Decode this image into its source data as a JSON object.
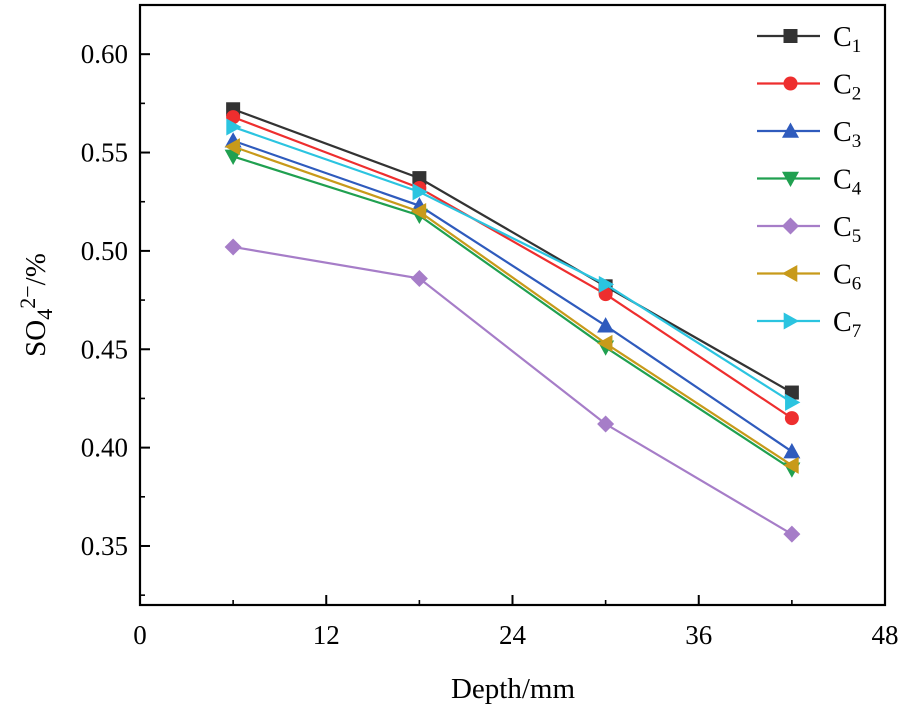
{
  "chart_data": {
    "type": "line",
    "title": "",
    "xlabel": "Depth/mm",
    "ylabel": {
      "base": "SO",
      "subscript": "4",
      "superscript": "2−",
      "suffix": "/%"
    },
    "xlim": [
      0,
      48
    ],
    "ylim": [
      0.32,
      0.625
    ],
    "xticks": [
      0,
      12,
      24,
      36,
      48
    ],
    "xtick_labels": [
      "0",
      "12",
      "24",
      "36",
      "48"
    ],
    "yticks": [
      0.35,
      0.4,
      0.45,
      0.5,
      0.55,
      0.6
    ],
    "ytick_labels": [
      "0.35",
      "0.40",
      "0.45",
      "0.50",
      "0.55",
      "0.60"
    ],
    "grid": false,
    "legend_position": "top-right",
    "x": [
      6,
      18,
      30,
      42
    ],
    "series": [
      {
        "name": "C1",
        "label": "C",
        "sub": "1",
        "color": "#333333",
        "marker": "square",
        "values": [
          0.572,
          0.537,
          0.482,
          0.428
        ]
      },
      {
        "name": "C2",
        "label": "C",
        "sub": "2",
        "color": "#ee2e2e",
        "marker": "circle",
        "values": [
          0.568,
          0.532,
          0.478,
          0.415
        ]
      },
      {
        "name": "C3",
        "label": "C",
        "sub": "3",
        "color": "#2f5bbd",
        "marker": "triangle-up",
        "values": [
          0.556,
          0.523,
          0.462,
          0.398
        ]
      },
      {
        "name": "C4",
        "label": "C",
        "sub": "4",
        "color": "#20a050",
        "marker": "triangle-down",
        "values": [
          0.548,
          0.518,
          0.451,
          0.389
        ]
      },
      {
        "name": "C5",
        "label": "C",
        "sub": "5",
        "color": "#a67dc8",
        "marker": "diamond",
        "values": [
          0.502,
          0.486,
          0.412,
          0.356
        ]
      },
      {
        "name": "C6",
        "label": "C",
        "sub": "6",
        "color": "#c89a1a",
        "marker": "triangle-left",
        "values": [
          0.553,
          0.52,
          0.453,
          0.391
        ]
      },
      {
        "name": "C7",
        "label": "C",
        "sub": "7",
        "color": "#2bc4e0",
        "marker": "triangle-right",
        "values": [
          0.563,
          0.53,
          0.483,
          0.423
        ]
      }
    ]
  }
}
